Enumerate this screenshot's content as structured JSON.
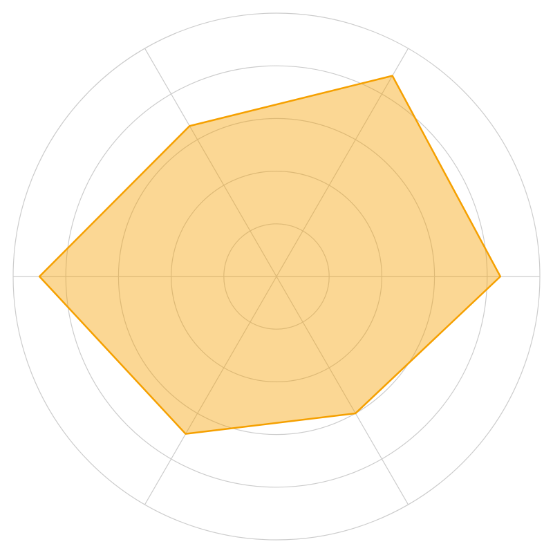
{
  "chart_data": {
    "type": "radar",
    "title": "",
    "axes_count": 6,
    "scale_max": 5,
    "rings": 5,
    "grid": true,
    "legend": "none",
    "series": [
      {
        "values": [
          4.25,
          4.4,
          3.3,
          4.5,
          3.45,
          3.0
        ],
        "color": "#f5a000",
        "fill": "#f5a000",
        "fill_opacity": 0.42
      }
    ]
  }
}
